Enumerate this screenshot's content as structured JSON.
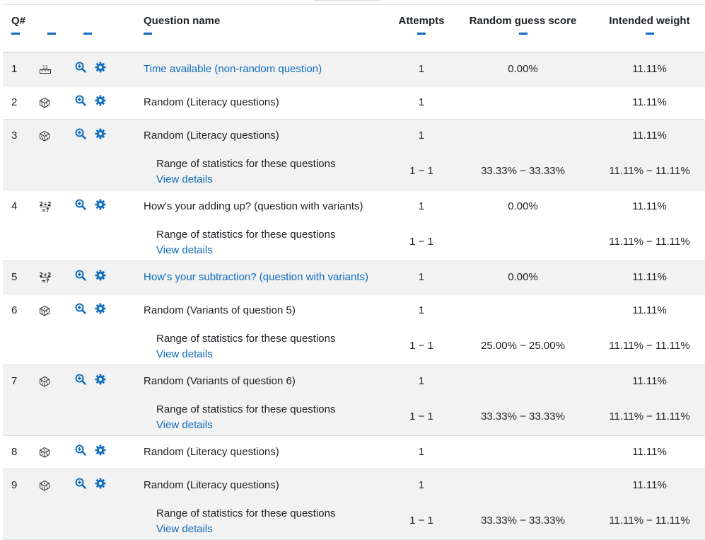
{
  "header": {
    "qnum": "Q#",
    "col_type": "",
    "col_actions": "",
    "question_name": "Question name",
    "attempts": "Attempts",
    "random_guess": "Random guess score",
    "intended_weight": "Intended weight"
  },
  "colors": {
    "accent": "#0f6cbf",
    "row_shade": "#f2f2f2",
    "border": "#dee2e6"
  },
  "icons": {
    "preview": "zoom-in-icon",
    "edit": "gear-icon",
    "random": "dice-icon",
    "calculated": "variants-icon",
    "description": "ruler-icon"
  },
  "rows": [
    {
      "num": "1",
      "type_icon": "ruler-icon",
      "name": "Time available (non-random question)",
      "name_is_link": true,
      "attempts": "1",
      "guess": "0.00%",
      "weight": "11.11%"
    },
    {
      "num": "2",
      "type_icon": "dice-icon",
      "name": "Random (Literacy questions)",
      "name_is_link": false,
      "attempts": "1",
      "guess": "",
      "weight": "11.11%"
    },
    {
      "num": "3",
      "type_icon": "dice-icon",
      "name": "Random (Literacy questions)",
      "name_is_link": false,
      "attempts": "1",
      "guess": "",
      "weight": "11.11%",
      "sub": {
        "label": "Range of statistics for these questions",
        "link": "View details",
        "attempts": "1 − 1",
        "guess": "33.33% − 33.33%",
        "weight": "11.11% − 11.11%"
      }
    },
    {
      "num": "4",
      "type_icon": "variants-icon",
      "name": "How's your adding up? (question with variants)",
      "name_is_link": false,
      "attempts": "1",
      "guess": "0.00%",
      "weight": "11.11%",
      "sub": {
        "label": "Range of statistics for these questions",
        "link": "View details",
        "attempts": "1 − 1",
        "guess": "",
        "weight": "11.11% − 11.11%"
      }
    },
    {
      "num": "5",
      "type_icon": "variants-icon",
      "name": "How's your subtraction? (question with variants)",
      "name_is_link": true,
      "attempts": "1",
      "guess": "0.00%",
      "weight": "11.11%"
    },
    {
      "num": "6",
      "type_icon": "dice-icon",
      "name": "Random (Variants of question 5)",
      "name_is_link": false,
      "attempts": "1",
      "guess": "",
      "weight": "11.11%",
      "sub": {
        "label": "Range of statistics for these questions",
        "link": "View details",
        "attempts": "1 − 1",
        "guess": "25.00% − 25.00%",
        "weight": "11.11% − 11.11%"
      }
    },
    {
      "num": "7",
      "type_icon": "dice-icon",
      "name": "Random (Variants of question 6)",
      "name_is_link": false,
      "attempts": "1",
      "guess": "",
      "weight": "11.11%",
      "sub": {
        "label": "Range of statistics for these questions",
        "link": "View details",
        "attempts": "1 − 1",
        "guess": "33.33% − 33.33%",
        "weight": "11.11% − 11.11%"
      }
    },
    {
      "num": "8",
      "type_icon": "dice-icon",
      "name": "Random (Literacy questions)",
      "name_is_link": false,
      "attempts": "1",
      "guess": "",
      "weight": "11.11%"
    },
    {
      "num": "9",
      "type_icon": "dice-icon",
      "name": "Random (Literacy questions)",
      "name_is_link": false,
      "attempts": "1",
      "guess": "",
      "weight": "11.11%",
      "sub": {
        "label": "Range of statistics for these questions",
        "link": "View details",
        "attempts": "1 − 1",
        "guess": "33.33% − 33.33%",
        "weight": "11.11% − 11.11%"
      }
    }
  ]
}
